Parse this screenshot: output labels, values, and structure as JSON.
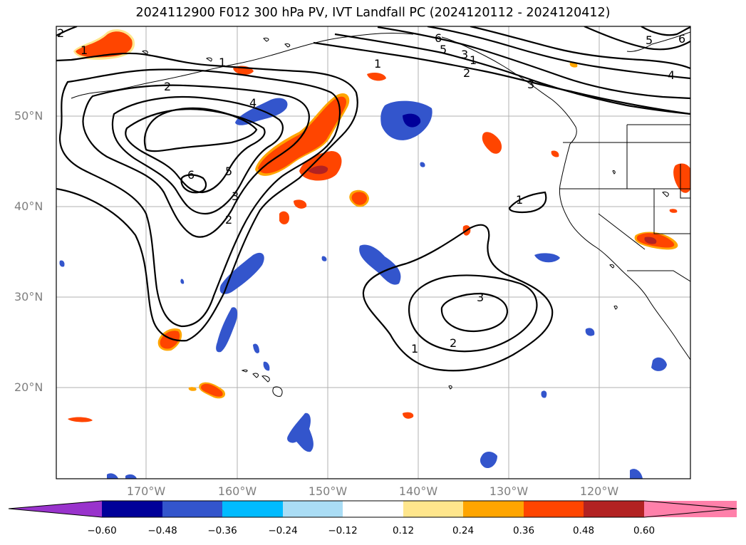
{
  "title": "2024112900 F012 300 hPa PV, IVT Landfall PC (2024120112 - 2024120412)",
  "lat_labels": [
    "50°N",
    "40°N",
    "30°N",
    "20°N"
  ],
  "lon_labels": [
    "170°W",
    "160°W",
    "150°W",
    "140°W",
    "130°W",
    "120°W"
  ],
  "colorbar": {
    "ticks": [
      "−0.60",
      "−0.48",
      "−0.36",
      "−0.24",
      "−0.12",
      "0.12",
      "0.24",
      "0.36",
      "0.48",
      "0.60"
    ],
    "colors": [
      "#9933cc",
      "#000099",
      "#3355cc",
      "#00bbff",
      "#aaddf5",
      "#ffffff",
      "#ffe68c",
      "#ffa500",
      "#ff4500",
      "#b22222",
      "#ff80aa"
    ]
  },
  "contour_labels": [
    "1",
    "1",
    "1",
    "1",
    "1",
    "1",
    "2",
    "2",
    "2",
    "2",
    "3",
    "3",
    "3",
    "3",
    "4",
    "4",
    "5",
    "5",
    "5",
    "6",
    "6",
    "6",
    "2"
  ],
  "colors": {
    "grid": "#b0b0b0",
    "coast": "#000000",
    "positive_high": "#ff4500",
    "positive_mid": "#ffa500",
    "negative_high": "#3355cc",
    "negative_low": "#000099"
  }
}
